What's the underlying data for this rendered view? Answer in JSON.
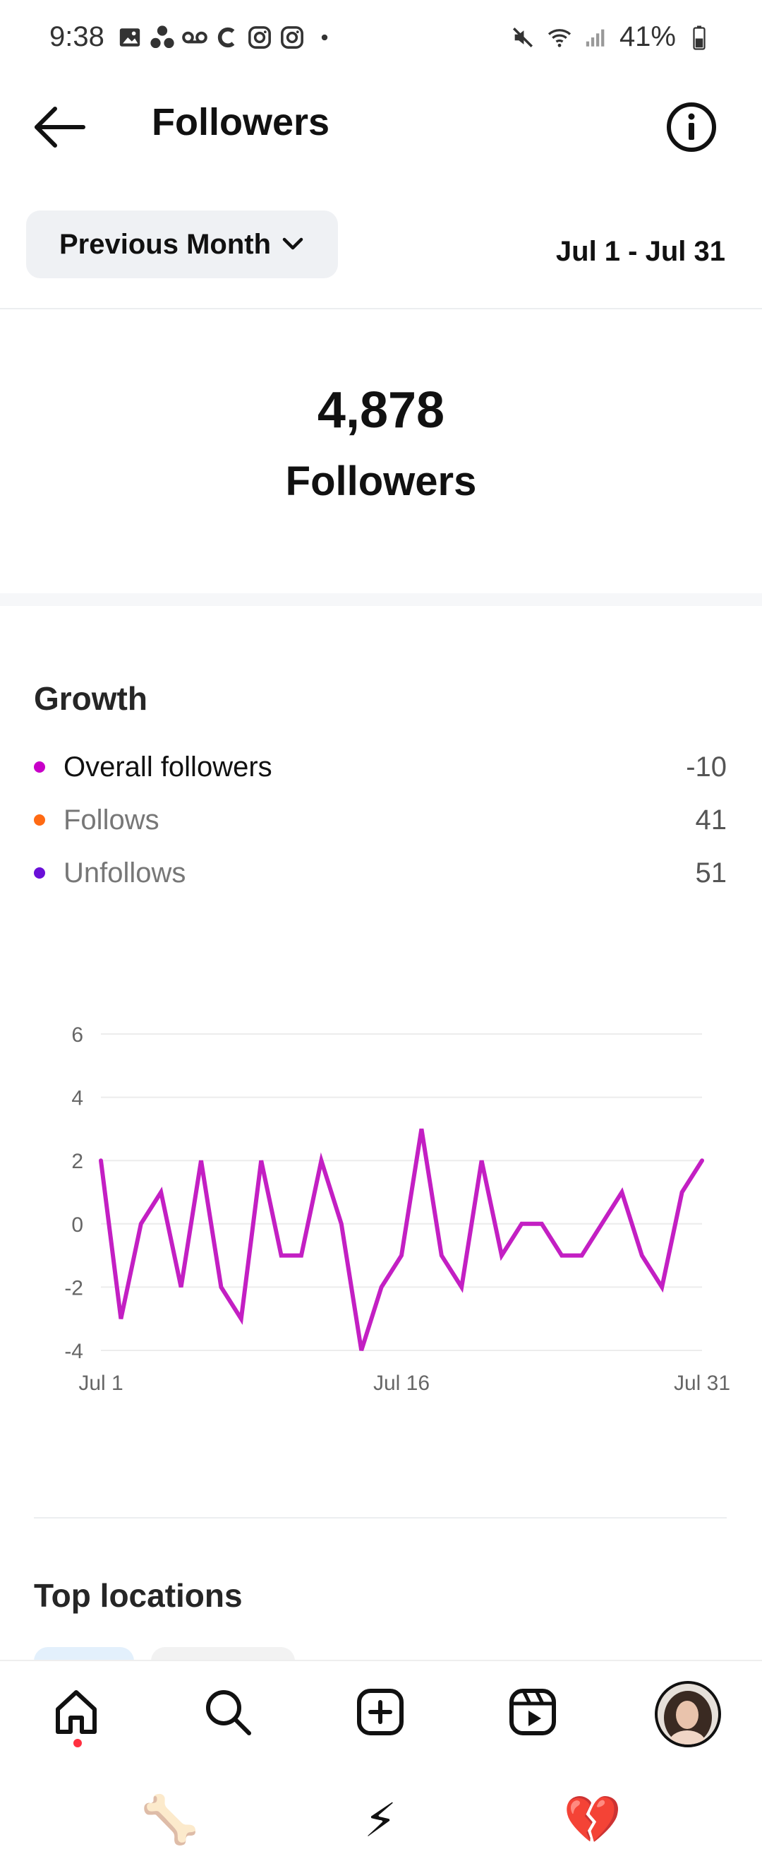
{
  "status_bar": {
    "time": "9:38",
    "battery": "41%",
    "left_icons": [
      "gallery-icon",
      "dots-icon",
      "voicemail-icon",
      "c-icon",
      "instagram-icon",
      "instagram-icon",
      "dot-icon"
    ],
    "right_icons": [
      "mute-icon",
      "wifi-icon",
      "signal-icon",
      "battery-icon"
    ]
  },
  "header": {
    "title": "Followers"
  },
  "period": {
    "selector_label": "Previous Month",
    "date_range": "Jul 1 - Jul 31"
  },
  "summary": {
    "value": "4,878",
    "label": "Followers"
  },
  "growth": {
    "title": "Growth",
    "legend": [
      {
        "name": "Overall followers",
        "value": "-10",
        "color": "#c800c8"
      },
      {
        "name": "Follows",
        "value": "41",
        "color": "#ff6a13"
      },
      {
        "name": "Unfollows",
        "value": "51",
        "color": "#6a0fd8"
      }
    ]
  },
  "chart_data": {
    "type": "line",
    "x": [
      1,
      2,
      3,
      4,
      5,
      6,
      7,
      8,
      9,
      10,
      11,
      12,
      13,
      14,
      15,
      16,
      17,
      18,
      19,
      20,
      21,
      22,
      23,
      24,
      25,
      26,
      27,
      28,
      29,
      30,
      31
    ],
    "series": [
      {
        "color": "#c31fc3",
        "values": [
          2,
          -3,
          0,
          1,
          -2,
          2,
          -2,
          -3,
          2,
          -1,
          -1,
          2,
          0,
          -4,
          -2,
          -1,
          3,
          -1,
          -2,
          2,
          -1,
          0,
          0,
          -1,
          -1,
          0,
          1,
          -1,
          -2,
          1,
          2
        ]
      }
    ],
    "x_tick_labels": [
      "Jul 1",
      "Jul 16",
      "Jul 31"
    ],
    "y_ticks": [
      -4,
      -2,
      0,
      2,
      4,
      6
    ],
    "ylim": [
      -4,
      6
    ],
    "grid": true
  },
  "top_locations": {
    "title": "Top locations"
  },
  "nav": {
    "items": [
      "home-icon",
      "search-icon",
      "create-icon",
      "reels-icon",
      "profile-avatar"
    ]
  },
  "emoji_row": [
    "🦴",
    "⚡",
    "💔"
  ]
}
